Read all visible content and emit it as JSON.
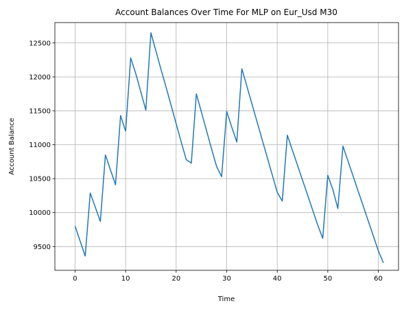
{
  "chart_data": {
    "type": "line",
    "title": "Account Balances Over Time For MLP on Eur_Usd M30",
    "xlabel": "Time",
    "ylabel": "Account Balance",
    "xlim": [
      -4,
      64
    ],
    "ylim": [
      9150,
      12800
    ],
    "xticks": [
      0,
      10,
      20,
      30,
      40,
      50,
      60
    ],
    "yticks": [
      9500,
      10000,
      10500,
      11000,
      11500,
      12000,
      12500
    ],
    "grid": true,
    "line_color": "#1f77b4",
    "series": [
      {
        "x": [
          0,
          1,
          2,
          3,
          4,
          5,
          6,
          7,
          8,
          9,
          10,
          11,
          12,
          13,
          14,
          15,
          16,
          17,
          18,
          19,
          20,
          21,
          22,
          23,
          24,
          25,
          26,
          27,
          28,
          29,
          30,
          31,
          32,
          33,
          34,
          35,
          36,
          37,
          38,
          39,
          40,
          41,
          42,
          43,
          44,
          45,
          46,
          47,
          48,
          49,
          50,
          51,
          52,
          53,
          54,
          55,
          56,
          57,
          58,
          59,
          60,
          61
        ],
        "values": [
          9800,
          9580,
          9360,
          10290,
          10080,
          9870,
          10850,
          10630,
          10410,
          11430,
          11200,
          12280,
          12050,
          11780,
          11510,
          12650,
          12380,
          12110,
          11850,
          11580,
          11310,
          11040,
          10780,
          10730,
          11750,
          11480,
          11210,
          10940,
          10680,
          10530,
          11490,
          11260,
          11040,
          12120,
          11860,
          11600,
          11340,
          11080,
          10820,
          10560,
          10300,
          10170,
          11140,
          10920,
          10700,
          10480,
          10260,
          10040,
          9820,
          9620,
          10550,
          10340,
          10060,
          10980,
          10760,
          10540,
          10320,
          10100,
          9880,
          9660,
          9440,
          9260
        ]
      }
    ]
  }
}
